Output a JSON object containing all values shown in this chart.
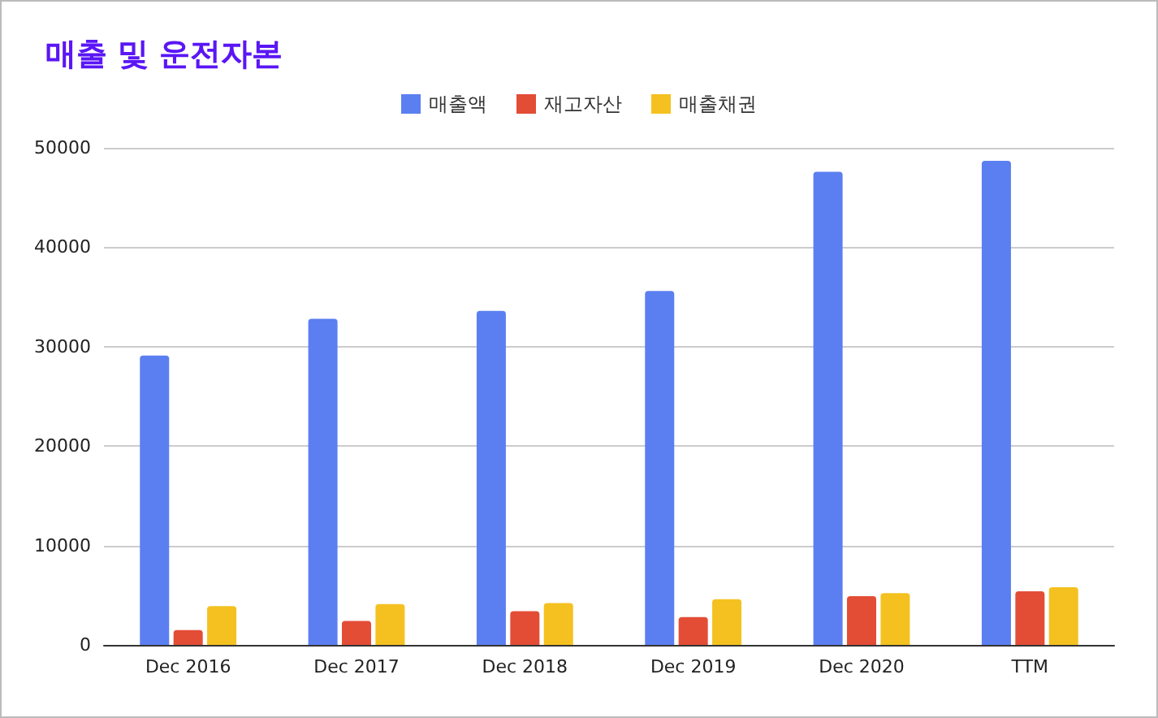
{
  "chart_data": {
    "type": "bar",
    "title": "매출 및 운전자본",
    "categories": [
      "Dec 2016",
      "Dec 2017",
      "Dec 2018",
      "Dec 2019",
      "Dec 2020",
      "TTM"
    ],
    "series": [
      {
        "name": "매출액",
        "color": "#5b7ff1",
        "values": [
          29100,
          32800,
          33600,
          35600,
          47600,
          48700
        ]
      },
      {
        "name": "재고자산",
        "color": "#e34d36",
        "values": [
          1500,
          2400,
          3400,
          2800,
          4900,
          5400
        ]
      },
      {
        "name": "매출채권",
        "color": "#f4c120",
        "values": [
          3900,
          4100,
          4200,
          4600,
          5200,
          5800
        ]
      }
    ],
    "ylim": [
      0,
      50000
    ],
    "yticks": [
      0,
      10000,
      20000,
      30000,
      40000,
      50000
    ],
    "grid": "y",
    "legend": "top"
  }
}
